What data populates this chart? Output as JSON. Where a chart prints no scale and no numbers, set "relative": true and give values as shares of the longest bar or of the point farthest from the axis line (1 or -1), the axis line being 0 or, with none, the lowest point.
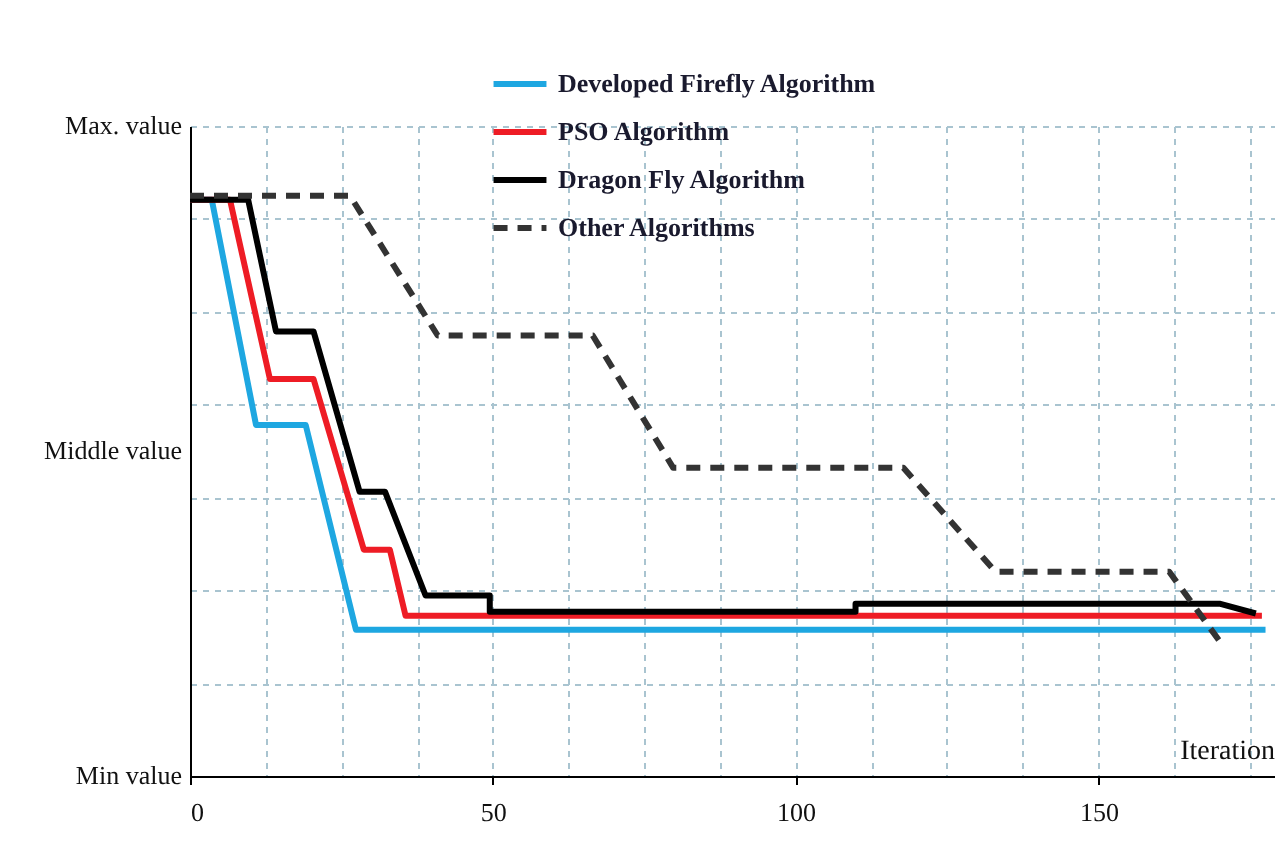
{
  "chart_data": {
    "type": "line",
    "xlabel": "Iteration",
    "relative": true,
    "annotations": [
      "Max. value",
      "Middle value",
      "Min value"
    ],
    "xlim": [
      0,
      179
    ],
    "xticks": [
      0,
      {
        "value": 12.5,
        "label": null
      },
      {
        "value": 25,
        "label": null
      },
      {
        "value": 37.5,
        "label": null
      },
      50,
      {
        "value": 62.5,
        "label": null
      },
      {
        "value": 75,
        "label": null
      },
      {
        "value": 87.5,
        "label": null
      },
      100,
      {
        "value": 112.5,
        "label": null
      },
      {
        "value": 125,
        "label": null
      },
      {
        "value": 137.5,
        "label": null
      },
      150,
      {
        "value": 162.5,
        "label": null
      },
      {
        "value": 175,
        "label": null
      }
    ],
    "grid": true,
    "legend": "top right",
    "line_style": "solid",
    "series": [
      {
        "name": "Developed Firefly Algorithm",
        "color": "#1ea7e1",
        "x": [
          0,
          3.6,
          10.9,
          19.1,
          27.4,
          177.6
        ],
        "values": [
          0.993,
          0.993,
          0.605,
          0.605,
          0.252,
          0.252
        ]
      },
      {
        "name": "PSO Algorithm",
        "color": "#ee1c25",
        "x": [
          0,
          6.6,
          13.2,
          20.4,
          28.7,
          33,
          35.6,
          177
        ],
        "values": [
          0.993,
          0.993,
          0.684,
          0.684,
          0.39,
          0.39,
          0.276,
          0.276
        ]
      },
      {
        "name": "Dragon Fly Algorithm",
        "color": "#000000",
        "x": [
          0,
          9.6,
          14.2,
          20.4,
          28,
          32.2,
          38.9,
          49.5,
          49.5,
          109.9,
          109.9,
          170,
          176
        ],
        "values": [
          0.993,
          0.993,
          0.766,
          0.766,
          0.49,
          0.49,
          0.311,
          0.311,
          0.283,
          0.283,
          0.297,
          0.297,
          0.28
        ]
      },
      {
        "name": "Other Algorithms",
        "color": "#333333",
        "line_style": "dashed",
        "x": [
          0,
          26.4,
          40.9,
          66.5,
          79.8,
          117.8,
          133,
          161.7,
          170.6
        ],
        "values": [
          1,
          1,
          0.759,
          0.759,
          0.531,
          0.531,
          0.352,
          0.352,
          0.224
        ]
      }
    ]
  }
}
